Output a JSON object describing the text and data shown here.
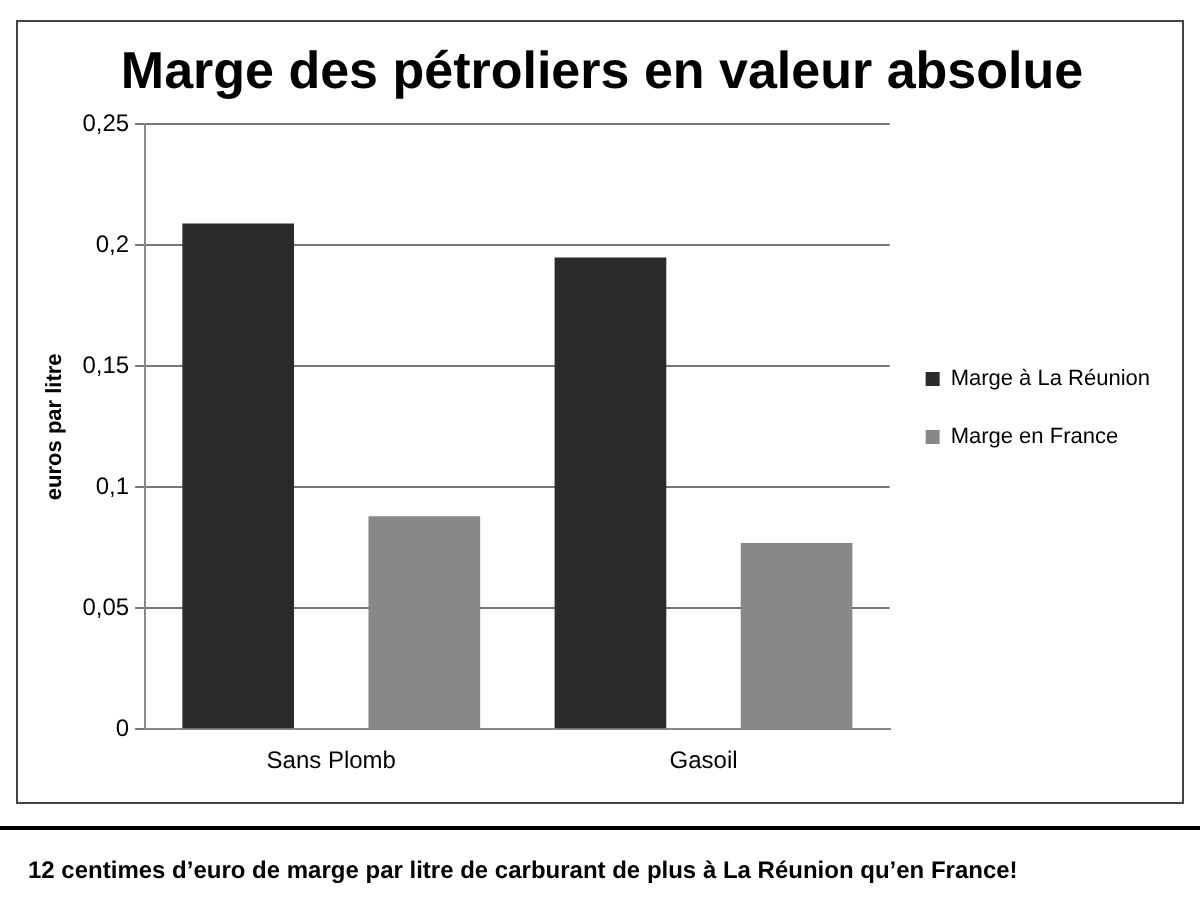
{
  "chart_data": {
    "type": "bar",
    "title": "Marge des pétroliers en valeur absolue",
    "ylabel": "euros par litre",
    "categories": [
      "Sans Plomb",
      "Gasoil"
    ],
    "series": [
      {
        "name": "Marge à La Réunion",
        "color": "#2b2b2b",
        "values": [
          0.209,
          0.195
        ]
      },
      {
        "name": "Marge en France",
        "color": "#888888",
        "values": [
          0.088,
          0.077
        ]
      }
    ],
    "ylim": [
      0,
      0.25
    ],
    "yticks": [
      0,
      {
        "value": 0.05,
        "label": "0,05"
      },
      {
        "value": 0.1,
        "label": "0,1"
      },
      {
        "value": 0.15,
        "label": "0,15"
      },
      {
        "value": 0.2,
        "label": "0,2"
      },
      {
        "value": 0.25,
        "label": "0,25"
      }
    ],
    "grid": "y",
    "legend": "right",
    "annotations": [
      "12 centimes d’euro de marge par litre de carburant de plus à La Réunion qu’en France!"
    ]
  }
}
